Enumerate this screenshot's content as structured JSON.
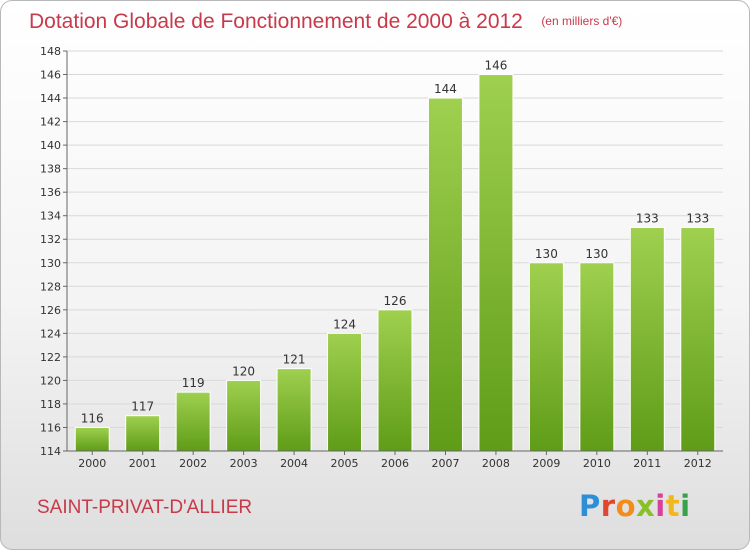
{
  "header": {
    "title": "Dotation Globale de Fonctionnement de 2000 à 2012",
    "unit": "(en milliers d'€)"
  },
  "footer": {
    "commune": "SAINT-PRIVAT-D'ALLIER",
    "logo_text": "Proxiti",
    "logo_colors": [
      "#2f8fd6",
      "#e2462f",
      "#f28c1a",
      "#8bbf2a",
      "#d6419b",
      "#f0b81c",
      "#3aa14b"
    ]
  },
  "colors": {
    "bar_light": "#9fd04f",
    "bar_dark": "#5f9c17",
    "grid": "#d9d9d9",
    "axis": "#666666",
    "accent": "#c8394a"
  },
  "chart_data": {
    "type": "bar",
    "title": "Dotation Globale de Fonctionnement de 2000 à 2012",
    "subtitle": "(en milliers d'€)",
    "xlabel": "",
    "ylabel": "",
    "categories": [
      "2000",
      "2001",
      "2002",
      "2003",
      "2004",
      "2005",
      "2006",
      "2007",
      "2008",
      "2009",
      "2010",
      "2011",
      "2012"
    ],
    "values": [
      116,
      117,
      119,
      120,
      121,
      124,
      126,
      144,
      146,
      130,
      130,
      133,
      133
    ],
    "ylim": [
      114,
      148
    ],
    "yticks": [
      114,
      116,
      118,
      120,
      122,
      124,
      126,
      128,
      130,
      132,
      134,
      136,
      138,
      140,
      142,
      144,
      146,
      148
    ],
    "grid": true,
    "legend": "none"
  }
}
